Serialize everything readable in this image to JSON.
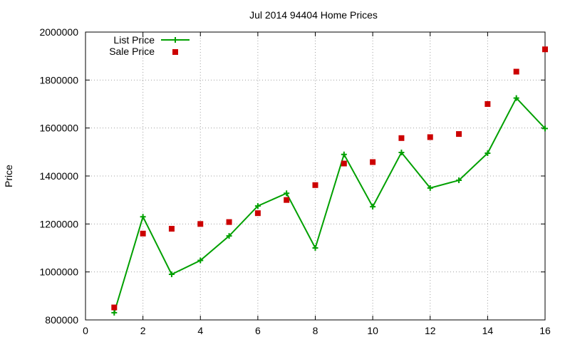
{
  "chart_data": {
    "type": "line",
    "title": "Jul 2014 94404 Home Prices",
    "xlabel": "",
    "ylabel": "Price",
    "xlim": [
      0,
      16
    ],
    "ylim": [
      800000,
      2000000
    ],
    "xticks": [
      0,
      2,
      4,
      6,
      8,
      10,
      12,
      14,
      16
    ],
    "yticks": [
      800000,
      1000000,
      1200000,
      1400000,
      1600000,
      1800000,
      2000000
    ],
    "grid": true,
    "legend_position": "top-left",
    "series": [
      {
        "name": "List Price",
        "style": "line-points",
        "color": "#00a000",
        "x": [
          1,
          2,
          3,
          4,
          5,
          6,
          7,
          8,
          9,
          10,
          11,
          12,
          13,
          14,
          15,
          16
        ],
        "y": [
          830000,
          1230000,
          990000,
          1048000,
          1150000,
          1275000,
          1328000,
          1100000,
          1490000,
          1272000,
          1498000,
          1350000,
          1382000,
          1495000,
          1725000,
          1598000
        ]
      },
      {
        "name": "Sale Price",
        "style": "points",
        "color": "#cc0000",
        "x": [
          1,
          2,
          3,
          4,
          5,
          6,
          7,
          8,
          9,
          10,
          11,
          12,
          13,
          14,
          15,
          16
        ],
        "y": [
          852000,
          1160000,
          1180000,
          1200000,
          1208000,
          1245000,
          1300000,
          1362000,
          1452000,
          1458000,
          1558000,
          1562000,
          1575000,
          1700000,
          1835000,
          1928000
        ]
      }
    ]
  }
}
